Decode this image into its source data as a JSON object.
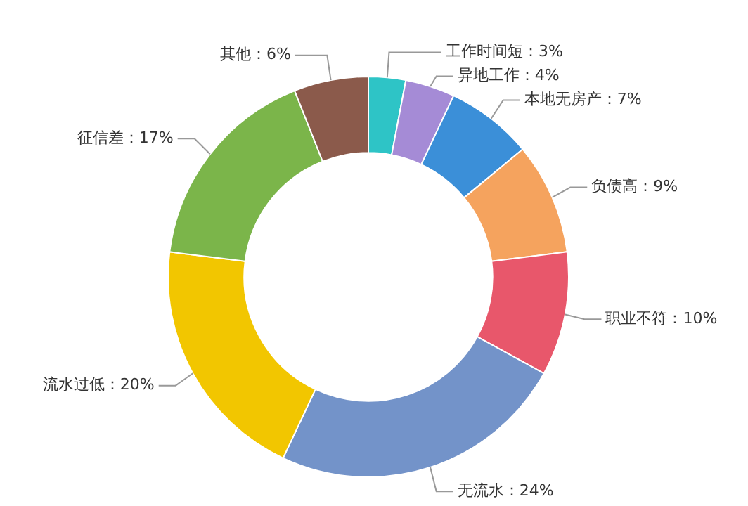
{
  "chart_data": {
    "type": "donut",
    "categories": [
      "工作时间短",
      "异地工作",
      "本地无房产",
      "负债高",
      "职业不符",
      "无流水",
      "流水过低",
      "征信差",
      "其他"
    ],
    "values": [
      3,
      4,
      7,
      9,
      10,
      24,
      20,
      17,
      6
    ],
    "value_labels": [
      "3%",
      "4%",
      "7%",
      "9%",
      "10%",
      "24%",
      "20%",
      "17%",
      "6%"
    ],
    "colors": [
      "#2ec4c6",
      "#a58bd6",
      "#3b8fd8",
      "#f5a35e",
      "#e8576b",
      "#7393c9",
      "#f2c600",
      "#7bb54a",
      "#8b5a4b"
    ]
  }
}
